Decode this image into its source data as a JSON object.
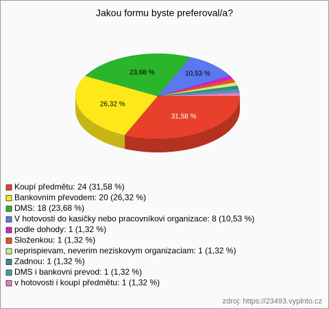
{
  "chart_data": {
    "type": "pie",
    "title": "Jakou formu byste preferoval/a?",
    "categories": [
      "Koupí předmětu: 24 (31,58 %)",
      "Bankovním převodem: 20 (26,32 %)",
      "DMS: 18 (23,68 %)",
      "V hotovosti do kasičky nebo pracovníkovi organizace: 8 (10,53 %)",
      "podle dohody: 1 (1,32 %)",
      "Složenkou: 1 (1,32 %)",
      "neprispievam, neverim neziskovym organizaciam: 1 (1,32 %)",
      "Zadnou: 1 (1,32 %)",
      "DMS i bankovni prevod: 1 (1,32 %)",
      "v hotovosti i koupí předmětu: 1 (1,32 %)"
    ],
    "values": [
      31.58,
      26.32,
      23.68,
      10.53,
      1.32,
      1.32,
      1.32,
      1.32,
      1.32,
      1.32
    ],
    "value_labels": [
      "31,58 %",
      "26,32 %",
      "23,68 %",
      "10,53 %",
      null,
      null,
      null,
      null,
      null,
      null
    ],
    "colors": [
      "#e8402a",
      "#ffe81a",
      "#2ab52a",
      "#5a78ef",
      "#d020d0",
      "#f05010",
      "#c8f088",
      "#3a8a8a",
      "#4a9ab0",
      "#e080c0"
    ],
    "source": "zdroj: https://23493.vyplnto.cz"
  }
}
